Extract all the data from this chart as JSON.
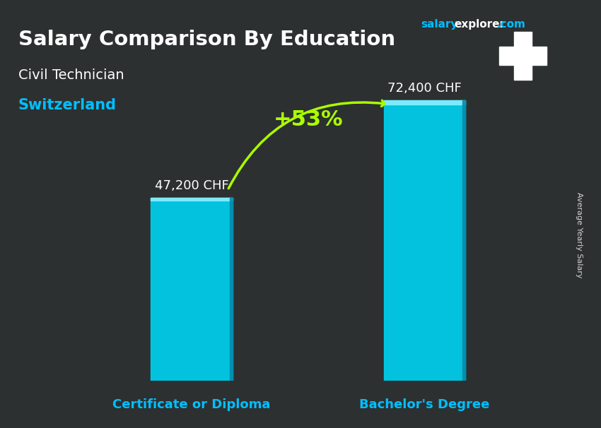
{
  "title1": "Salary Comparison By Education",
  "title1_salary": "salary",
  "title1_explorer": "explorer",
  "title1_com": ".com",
  "subtitle1": "Civil Technician",
  "subtitle2": "Switzerland",
  "categories": [
    "Certificate or Diploma",
    "Bachelor's Degree"
  ],
  "values": [
    47200,
    72400
  ],
  "value_labels": [
    "47,200 CHF",
    "72,400 CHF"
  ],
  "bar_color": "#00BFFF",
  "bar_color_top": "#00D4FF",
  "pct_change": "+53%",
  "pct_color": "#AAFF00",
  "ylabel_rotated": "Average Yearly Salary",
  "bg_color": "#1a1a2e",
  "title_color": "#FFFFFF",
  "subtitle1_color": "#FFFFFF",
  "subtitle2_color": "#00BFFF",
  "salary_color": "#00BFFF",
  "explorer_color": "#FFFFFF",
  "value_label_color": "#FFFFFF",
  "xlabel_color": "#00BFFF",
  "flag_bg": "#CC0000",
  "ylim": [
    0,
    85000
  ]
}
